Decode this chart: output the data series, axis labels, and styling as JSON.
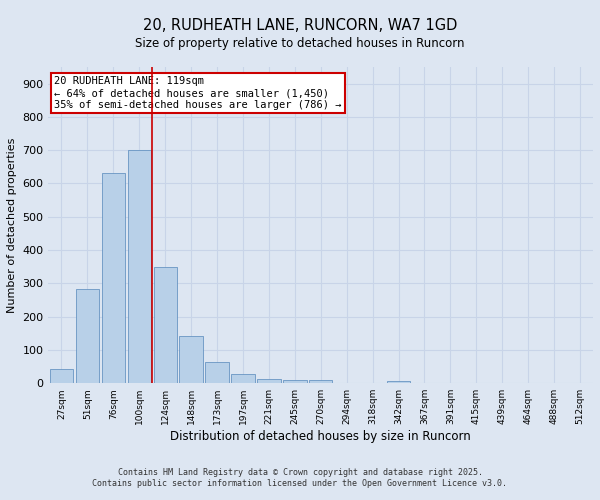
{
  "title": "20, RUDHEATH LANE, RUNCORN, WA7 1GD",
  "subtitle": "Size of property relative to detached houses in Runcorn",
  "xlabel": "Distribution of detached houses by size in Runcorn",
  "ylabel": "Number of detached properties",
  "footer_line1": "Contains HM Land Registry data © Crown copyright and database right 2025.",
  "footer_line2": "Contains public sector information licensed under the Open Government Licence v3.0.",
  "categories": [
    "27sqm",
    "51sqm",
    "76sqm",
    "100sqm",
    "124sqm",
    "148sqm",
    "173sqm",
    "197sqm",
    "221sqm",
    "245sqm",
    "270sqm",
    "294sqm",
    "318sqm",
    "342sqm",
    "367sqm",
    "391sqm",
    "415sqm",
    "439sqm",
    "464sqm",
    "488sqm",
    "512sqm"
  ],
  "values": [
    42,
    283,
    632,
    700,
    350,
    143,
    65,
    28,
    13,
    11,
    11,
    0,
    0,
    8,
    0,
    0,
    0,
    0,
    0,
    0,
    0
  ],
  "bar_color": "#b8d0e8",
  "bar_edgecolor": "#5588bb",
  "bg_color": "#dde6f2",
  "grid_color": "#c8d4e8",
  "vline_color": "#cc0000",
  "vline_x": 3.5,
  "annotation_text": "20 RUDHEATH LANE: 119sqm\n← 64% of detached houses are smaller (1,450)\n35% of semi-detached houses are larger (786) →",
  "annotation_box_color": "#cc0000",
  "ylim": [
    0,
    950
  ],
  "yticks": [
    0,
    100,
    200,
    300,
    400,
    500,
    600,
    700,
    800,
    900
  ]
}
